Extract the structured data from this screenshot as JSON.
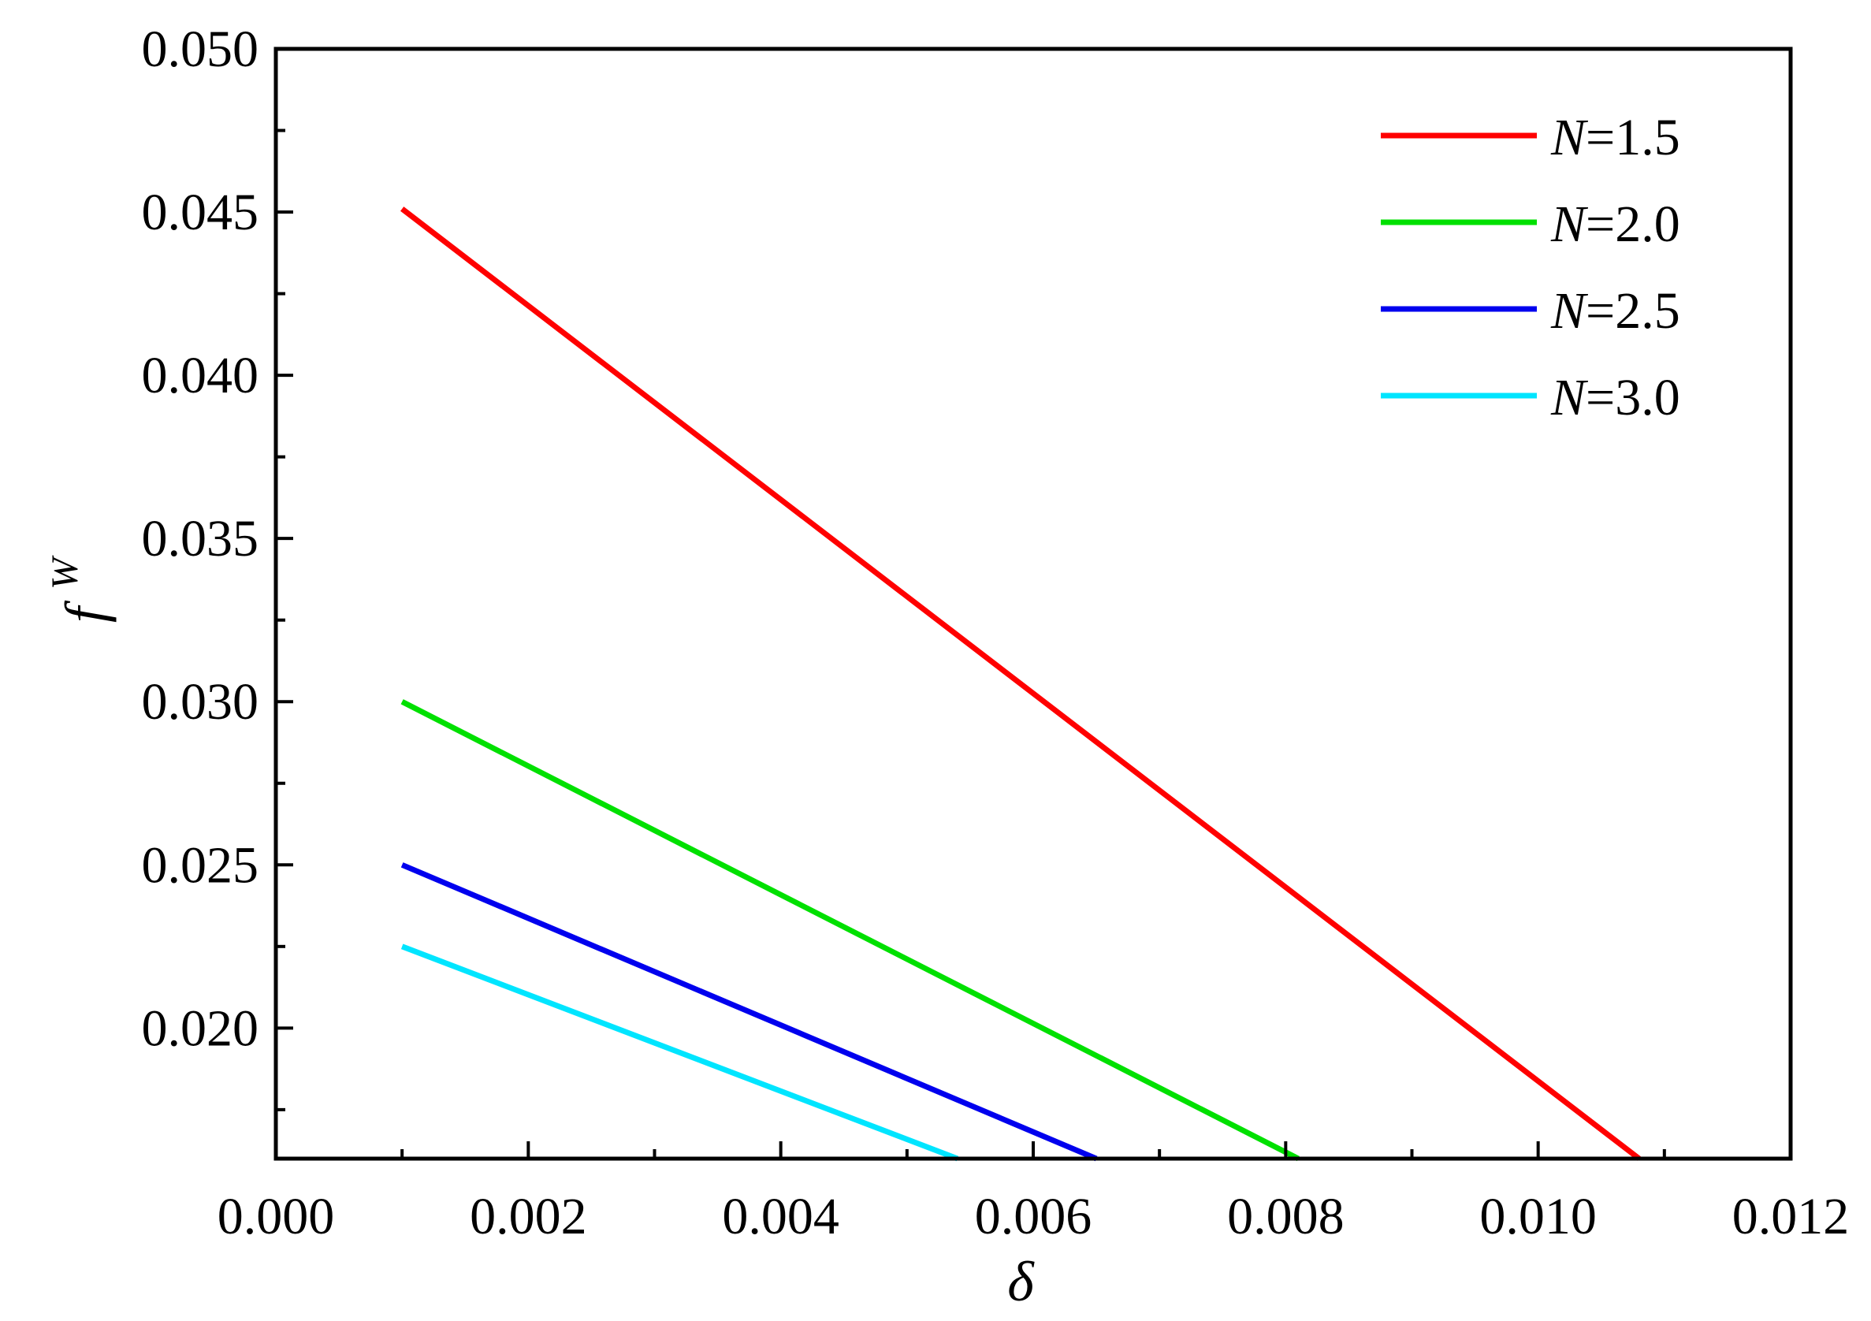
{
  "chart_data": {
    "type": "line",
    "xlabel": "δ",
    "ylabel": "f",
    "ylabel_superscript": "W",
    "xlim": [
      0.0,
      0.012
    ],
    "ylim": [
      0.016,
      0.05
    ],
    "x_ticks": [
      "0.000",
      "0.002",
      "0.004",
      "0.006",
      "0.008",
      "0.010",
      "0.012"
    ],
    "y_ticks": [
      "0.020",
      "0.025",
      "0.030",
      "0.035",
      "0.040",
      "0.045",
      "0.050"
    ],
    "grid": false,
    "legend_position": "top-right",
    "series": [
      {
        "name_prefix": "N",
        "name_value": "=1.5",
        "color": "#ff0000",
        "x": [
          0.001,
          0.0108
        ],
        "y": [
          0.0451,
          0.016
        ]
      },
      {
        "name_prefix": "N",
        "name_value": "=2.0",
        "color": "#00e000",
        "x": [
          0.001,
          0.0081
        ],
        "y": [
          0.03,
          0.016
        ]
      },
      {
        "name_prefix": "N",
        "name_value": "=2.5",
        "color": "#0000ee",
        "x": [
          0.001,
          0.0065
        ],
        "y": [
          0.025,
          0.016
        ]
      },
      {
        "name_prefix": "N",
        "name_value": "=3.0",
        "color": "#00e5ff",
        "x": [
          0.001,
          0.0054
        ],
        "y": [
          0.0225,
          0.016
        ]
      }
    ]
  }
}
